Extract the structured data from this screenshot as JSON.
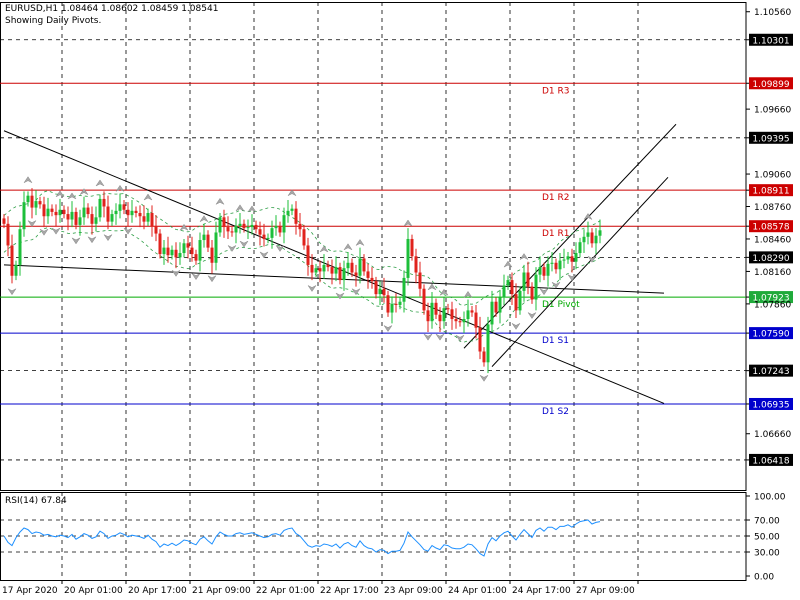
{
  "header": {
    "symbol_line": "EURUSD,H1  1.08464 1.08602 1.08459 1.08541",
    "subtitle": "Showing Daily Pivots."
  },
  "rsi_panel": {
    "label": "RSI(14) 67.84",
    "ticks": [
      "100.00",
      "70.00",
      "50.00",
      "30.00",
      "0.00"
    ]
  },
  "chart_data": {
    "type": "candlestick",
    "symbol": "EURUSD",
    "timeframe": "H1",
    "ohlc_last": {
      "open": 1.08464,
      "high": 1.08602,
      "low": 1.08459,
      "close": 1.08541
    },
    "ylim": [
      1.0614,
      1.1065
    ],
    "y_ticks": [
      "1.10560",
      "1.10301",
      "1.09899",
      "1.09660",
      "1.09395",
      "1.09060",
      "1.08911",
      "1.08760",
      "1.08578",
      "1.08460",
      "1.08290",
      "1.08160",
      "1.07923",
      "1.07860",
      "1.07590",
      "1.07243",
      "1.06935",
      "1.06660",
      "1.06418"
    ],
    "highlighted_price_labels": [
      {
        "text": "1.10301",
        "style": "black"
      },
      {
        "text": "1.09899",
        "style": "red"
      },
      {
        "text": "1.09395",
        "style": "black"
      },
      {
        "text": "1.08911",
        "style": "red"
      },
      {
        "text": "1.08578",
        "style": "red"
      },
      {
        "text": "1.08290",
        "style": "black"
      },
      {
        "text": "1.07923",
        "style": "green"
      },
      {
        "text": "1.07590",
        "style": "blue"
      },
      {
        "text": "1.07243",
        "style": "black"
      },
      {
        "text": "1.06935",
        "style": "blue"
      },
      {
        "text": "1.06418",
        "style": "black"
      }
    ],
    "x_ticks": [
      "17 Apr 2020",
      "20 Apr 01:00",
      "20 Apr 17:00",
      "21 Apr 09:00",
      "22 Apr 01:00",
      "22 Apr 17:00",
      "23 Apr 09:00",
      "24 Apr 01:00",
      "24 Apr 17:00",
      "27 Apr 09:00"
    ],
    "pivot_levels": [
      {
        "name": "D1 R3",
        "value": 1.09899,
        "color": "#cc0000"
      },
      {
        "name": "D1 R2",
        "value": 1.08911,
        "color": "#cc0000"
      },
      {
        "name": "D1 R1",
        "value": 1.08578,
        "color": "#cc0000"
      },
      {
        "name": "D1 Pivot",
        "value": 1.07923,
        "color": "#00aa00"
      },
      {
        "name": "D1 S1",
        "value": 1.0759,
        "color": "#0000cc"
      },
      {
        "name": "D1 S2",
        "value": 1.06935,
        "color": "#0000cc"
      }
    ],
    "trendlines": [
      {
        "from": [
          0,
          1.0946
        ],
        "to": [
          165,
          1.0694
        ]
      },
      {
        "from": [
          0,
          1.0822
        ],
        "to": [
          165,
          1.0796
        ]
      },
      {
        "from": [
          115,
          1.0745
        ],
        "to": [
          168,
          1.0952
        ]
      },
      {
        "from": [
          122,
          1.0728
        ],
        "to": [
          166,
          1.0903
        ]
      }
    ],
    "close": [
      1.086,
      1.084,
      1.0812,
      1.0822,
      1.0855,
      1.088,
      1.0886,
      1.0875,
      1.0881,
      1.0878,
      1.0867,
      1.0874,
      1.0871,
      1.0868,
      1.0873,
      1.0869,
      1.0864,
      1.0871,
      1.0859,
      1.0866,
      1.0875,
      1.0869,
      1.086,
      1.0866,
      1.0883,
      1.0876,
      1.0862,
      1.0869,
      1.0872,
      1.0878,
      1.0873,
      1.0868,
      1.0872,
      1.087,
      1.0867,
      1.0862,
      1.087,
      1.0858,
      1.0851,
      1.0832,
      1.0838,
      1.0831,
      1.0836,
      1.0829,
      1.0833,
      1.0842,
      1.0838,
      1.0832,
      1.0826,
      1.0845,
      1.085,
      1.0838,
      1.0824,
      1.0852,
      1.0866,
      1.0857,
      1.0853,
      1.0852,
      1.0858,
      1.086,
      1.0856,
      1.0857,
      1.0859,
      1.0855,
      1.085,
      1.0846,
      1.0847,
      1.0856,
      1.0858,
      1.0852,
      1.0868,
      1.0872,
      1.0874,
      1.086,
      1.0855,
      1.084,
      1.0822,
      1.0815,
      1.0819,
      1.0816,
      1.0822,
      1.082,
      1.0814,
      1.082,
      1.0808,
      1.0819,
      1.0824,
      1.0815,
      1.0812,
      1.0828,
      1.0816,
      1.081,
      1.0807,
      1.0795,
      1.08,
      1.0794,
      1.0778,
      1.0786,
      1.0785,
      1.0788,
      1.081,
      1.0846,
      1.083,
      1.0815,
      1.08,
      1.078,
      1.077,
      1.0787,
      1.0776,
      1.077,
      1.0782,
      1.0781,
      1.0772,
      1.077,
      1.0769,
      1.0772,
      1.078,
      1.0778,
      1.0764,
      1.0742,
      1.0732,
      1.0767,
      1.0788,
      1.0778,
      1.0792,
      1.0803,
      1.0808,
      1.0795,
      1.078,
      1.0798,
      1.0815,
      1.0802,
      1.079,
      1.0813,
      1.082,
      1.0812,
      1.0823,
      1.0824,
      1.0818,
      1.0826,
      1.0827,
      1.083,
      1.0825,
      1.0833,
      1.0843,
      1.0848,
      1.0852,
      1.0842,
      1.0849,
      1.0854
    ],
    "rsi": [
      50,
      42,
      38,
      48,
      55,
      60,
      58,
      53,
      55,
      54,
      51,
      52,
      50,
      49,
      51,
      50,
      48,
      52,
      46,
      49,
      53,
      51,
      47,
      49,
      56,
      53,
      47,
      50,
      51,
      54,
      52,
      49,
      51,
      50,
      49,
      47,
      51,
      46,
      43,
      36,
      40,
      38,
      41,
      38,
      41,
      45,
      44,
      41,
      39,
      46,
      49,
      44,
      40,
      49,
      55,
      52,
      50,
      50,
      53,
      54,
      52,
      53,
      54,
      52,
      50,
      48,
      49,
      52,
      53,
      51,
      57,
      59,
      60,
      53,
      50,
      44,
      38,
      36,
      38,
      37,
      40,
      39,
      37,
      40,
      35,
      40,
      42,
      38,
      36,
      44,
      38,
      35,
      34,
      30,
      33,
      32,
      28,
      31,
      31,
      32,
      41,
      55,
      49,
      44,
      39,
      33,
      31,
      38,
      35,
      33,
      39,
      38,
      35,
      34,
      34,
      36,
      40,
      39,
      34,
      28,
      25,
      40,
      48,
      44,
      50,
      54,
      56,
      50,
      45,
      52,
      58,
      53,
      48,
      57,
      60,
      56,
      61,
      61,
      58,
      62,
      62,
      64,
      61,
      65,
      68,
      69,
      70,
      65,
      67,
      68
    ]
  }
}
